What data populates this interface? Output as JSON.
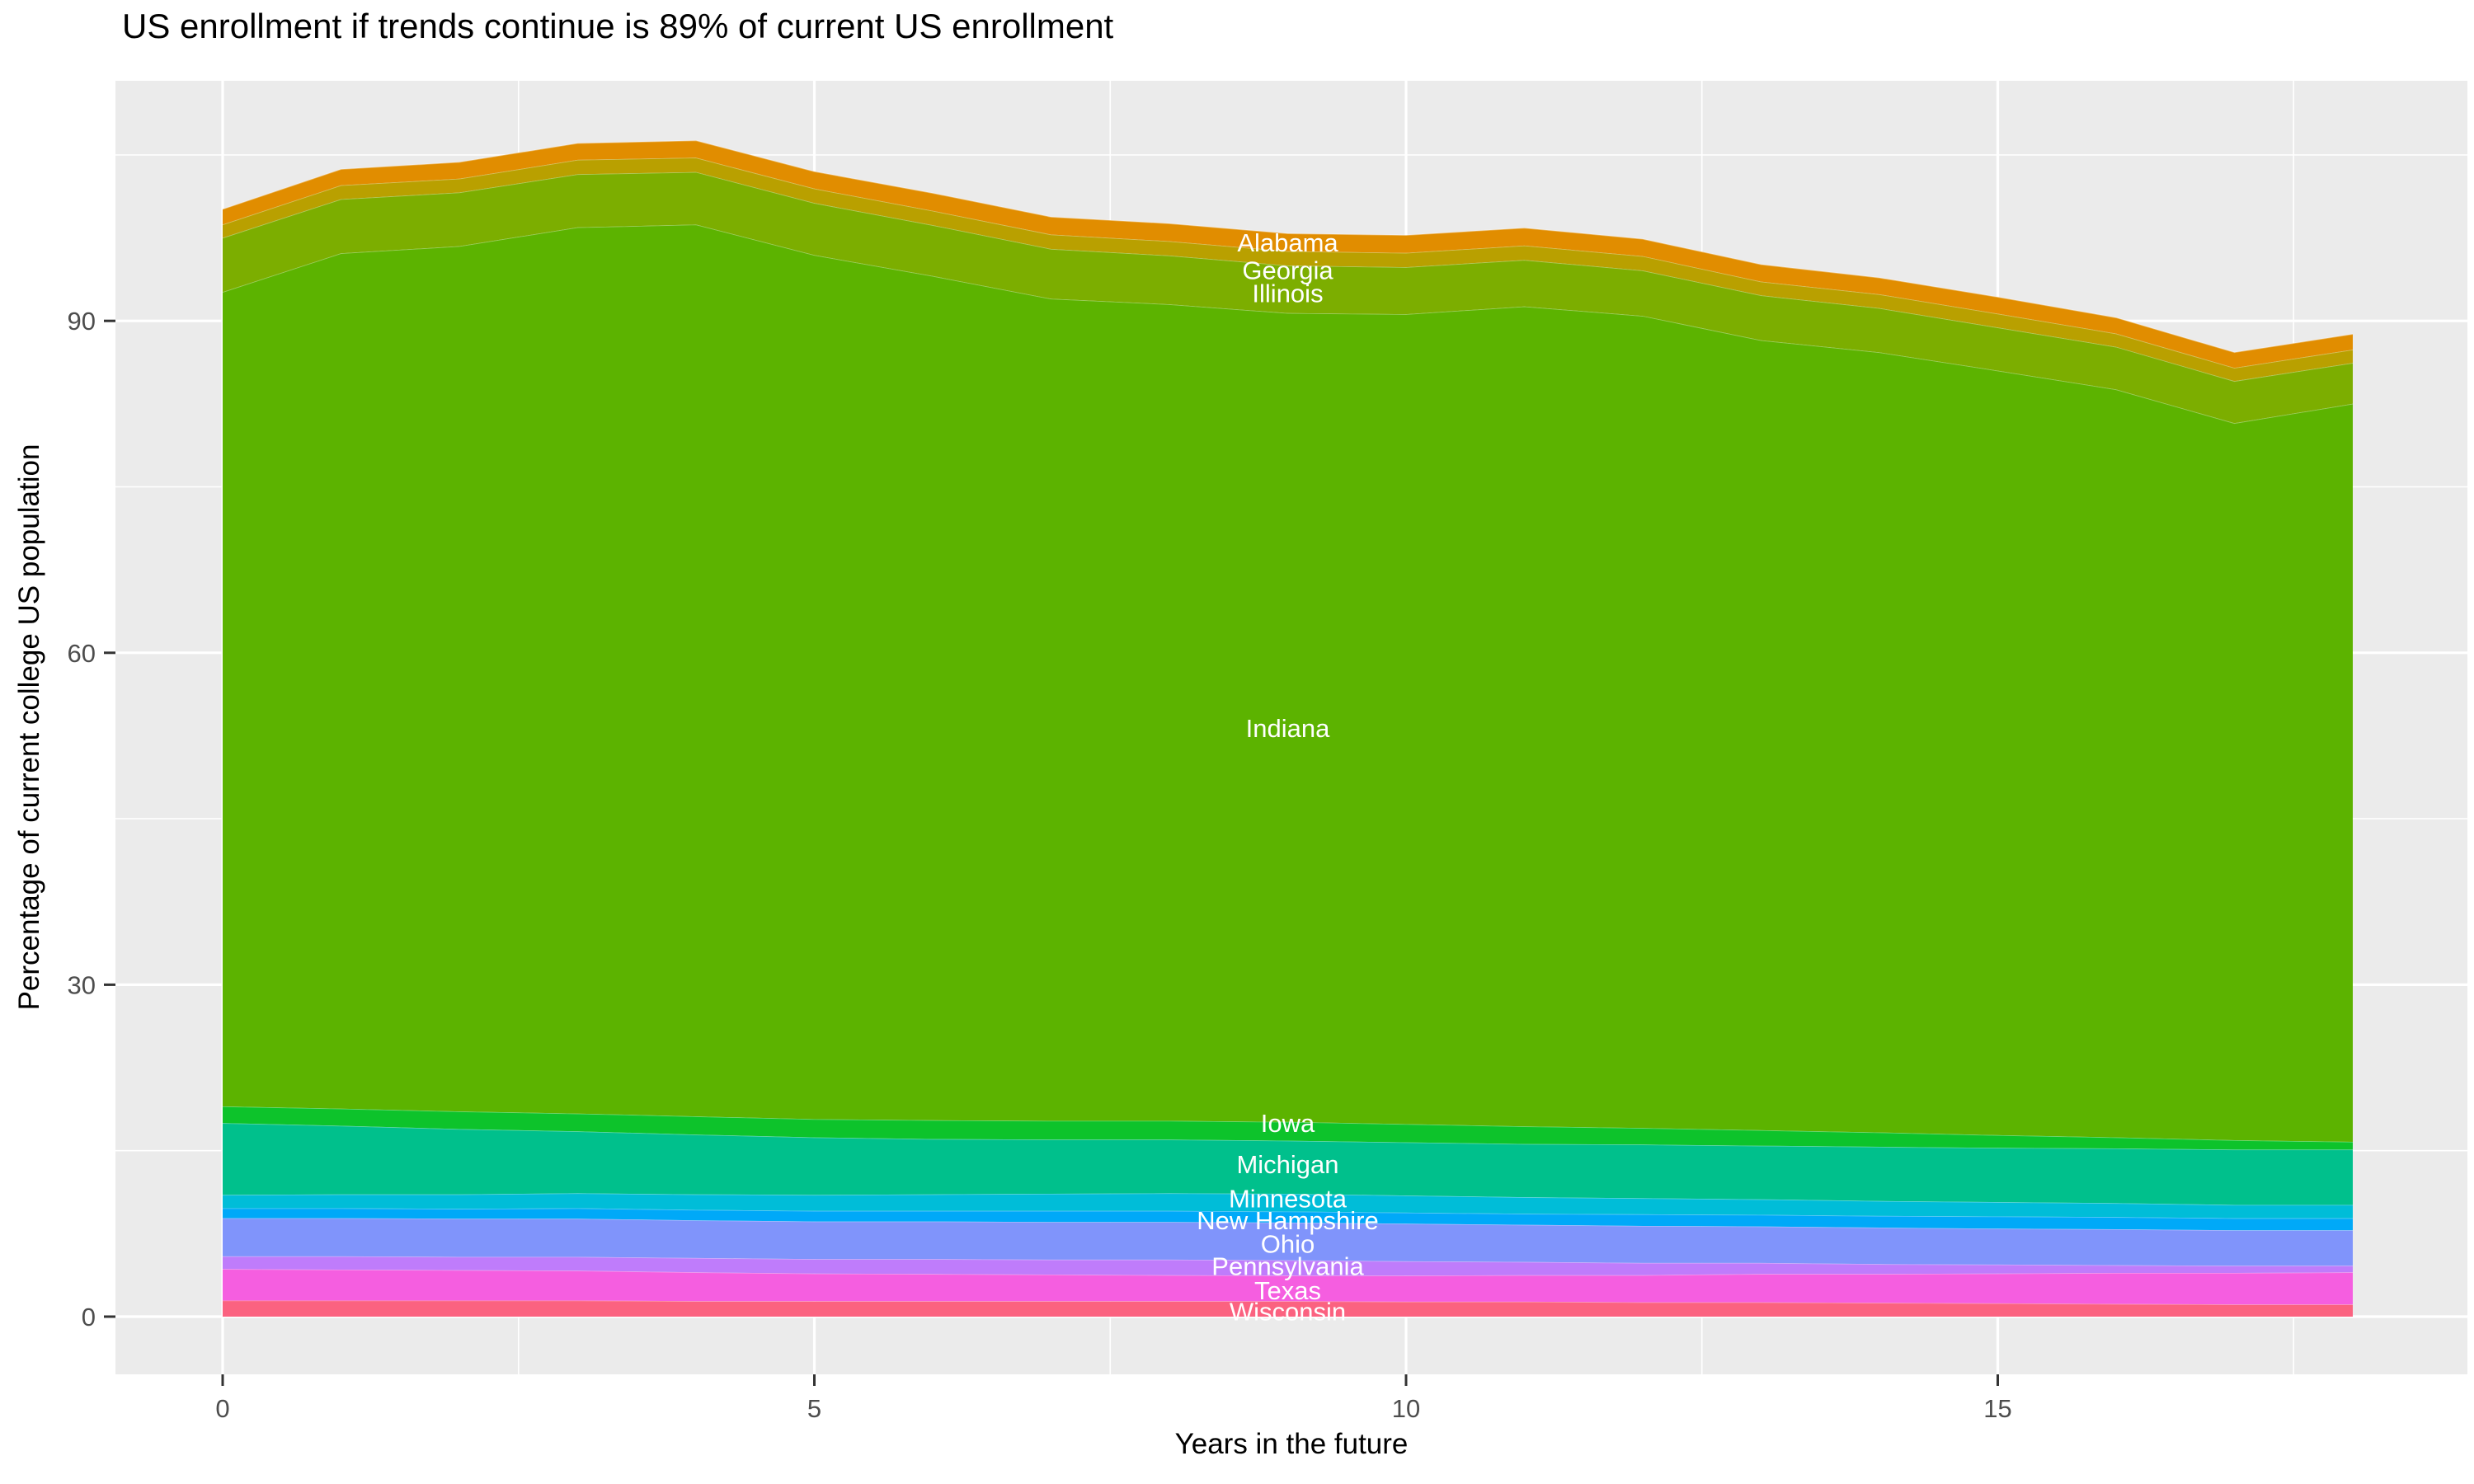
{
  "title": "US enrollment if trends continue is 89% of current US enrollment",
  "chart_data": {
    "type": "area",
    "stacked": true,
    "title": "US enrollment if trends continue is 89% of current US enrollment",
    "xlabel": "Years in the future",
    "ylabel": "Percentage of current college US population",
    "x": [
      0,
      1,
      2,
      3,
      4,
      5,
      6,
      7,
      8,
      9,
      10,
      11,
      12,
      13,
      14,
      15,
      16,
      17,
      18
    ],
    "xlim": [
      -0.9,
      18.9
    ],
    "ylim": [
      -5.2,
      111.5
    ],
    "x_ticks": [
      0,
      5,
      10,
      15
    ],
    "y_ticks": [
      0,
      30,
      60,
      90
    ],
    "x_minor_ticks": [
      2.5,
      7.5,
      12.5,
      17.5
    ],
    "y_minor_ticks": [
      15,
      45,
      75,
      105
    ],
    "grid": "on",
    "legend_position": "none",
    "panel_bg": "#EBEBEB",
    "grid_color": "#FFFFFF",
    "tick_color": "#333333",
    "tick_label_color": "#4D4D4D",
    "area_label_color": "#FFFFFF",
    "label_x": 9,
    "series": [
      {
        "name": "Wisconsin",
        "color": "#FB6280",
        "label_value": 0.5,
        "values": [
          1.45,
          1.45,
          1.45,
          1.45,
          1.4,
          1.4,
          1.4,
          1.4,
          1.4,
          1.4,
          1.35,
          1.35,
          1.3,
          1.3,
          1.25,
          1.2,
          1.15,
          1.1,
          1.1
        ]
      },
      {
        "name": "Texas",
        "color": "#F55EE0",
        "label_value": 2.4,
        "values": [
          2.85,
          2.8,
          2.75,
          2.7,
          2.6,
          2.5,
          2.45,
          2.4,
          2.35,
          2.3,
          2.35,
          2.4,
          2.45,
          2.55,
          2.6,
          2.7,
          2.8,
          2.85,
          2.9
        ]
      },
      {
        "name": "Pennsylvania",
        "color": "#BF7CFB",
        "label_value": 4.6,
        "values": [
          1.15,
          1.2,
          1.2,
          1.25,
          1.3,
          1.3,
          1.35,
          1.35,
          1.4,
          1.4,
          1.3,
          1.2,
          1.1,
          1.0,
          0.9,
          0.8,
          0.7,
          0.65,
          0.6
        ]
      },
      {
        "name": "Ohio",
        "color": "#8094FB",
        "label_value": 6.6,
        "values": [
          3.45,
          3.45,
          3.45,
          3.45,
          3.4,
          3.4,
          3.4,
          3.4,
          3.4,
          3.4,
          3.4,
          3.35,
          3.35,
          3.3,
          3.3,
          3.25,
          3.25,
          3.2,
          3.2
        ]
      },
      {
        "name": "New Hampshire",
        "color": "#00A9F8",
        "label_value": 8.7,
        "values": [
          0.9,
          0.9,
          0.9,
          0.95,
          0.95,
          0.95,
          0.95,
          1.0,
          1.0,
          1.0,
          1.0,
          1.0,
          1.05,
          1.05,
          1.05,
          1.1,
          1.1,
          1.1,
          1.1
        ]
      },
      {
        "name": "Minnesota",
        "color": "#00BDD8",
        "label_value": 10.7,
        "values": [
          1.2,
          1.25,
          1.3,
          1.35,
          1.4,
          1.45,
          1.5,
          1.55,
          1.6,
          1.6,
          1.55,
          1.5,
          1.45,
          1.4,
          1.35,
          1.3,
          1.25,
          1.2,
          1.2
        ]
      },
      {
        "name": "Michigan",
        "color": "#00C08C",
        "label_value": 13.8,
        "values": [
          6.5,
          6.2,
          5.9,
          5.6,
          5.4,
          5.2,
          5.0,
          4.9,
          4.85,
          4.8,
          4.8,
          4.8,
          4.85,
          4.85,
          4.9,
          4.9,
          4.95,
          5.0,
          5.0
        ]
      },
      {
        "name": "Iowa",
        "color": "#0DC32B",
        "label_value": 17.5,
        "values": [
          1.5,
          1.55,
          1.6,
          1.6,
          1.65,
          1.65,
          1.7,
          1.7,
          1.7,
          1.7,
          1.65,
          1.6,
          1.5,
          1.4,
          1.3,
          1.15,
          1.0,
          0.85,
          0.7
        ]
      },
      {
        "name": "Indiana",
        "color": "#5CB300",
        "label_value": 53.2,
        "values": [
          73.6,
          77.3,
          78.2,
          80.1,
          80.6,
          78.1,
          76.3,
          74.3,
          73.8,
          73.1,
          73.2,
          74.1,
          73.4,
          71.4,
          70.5,
          69.1,
          67.6,
          64.8,
          66.7
        ]
      },
      {
        "name": "Illinois",
        "color": "#7CAE00",
        "label_value": 92.5,
        "values": [
          4.9,
          4.9,
          4.85,
          4.8,
          4.75,
          4.7,
          4.6,
          4.5,
          4.4,
          4.3,
          4.25,
          4.2,
          4.1,
          4.05,
          4.0,
          3.9,
          3.85,
          3.8,
          3.7
        ]
      },
      {
        "name": "Georgia",
        "color": "#B9A000",
        "label_value": 94.6,
        "values": [
          1.2,
          1.25,
          1.25,
          1.3,
          1.3,
          1.3,
          1.3,
          1.3,
          1.3,
          1.3,
          1.3,
          1.3,
          1.3,
          1.25,
          1.25,
          1.25,
          1.2,
          1.2,
          1.2
        ]
      },
      {
        "name": "Alabama",
        "color": "#E18D00",
        "label_value": 97.1,
        "values": [
          1.4,
          1.45,
          1.5,
          1.5,
          1.55,
          1.55,
          1.6,
          1.6,
          1.6,
          1.6,
          1.6,
          1.6,
          1.55,
          1.55,
          1.5,
          1.5,
          1.45,
          1.4,
          1.4
        ]
      }
    ]
  }
}
